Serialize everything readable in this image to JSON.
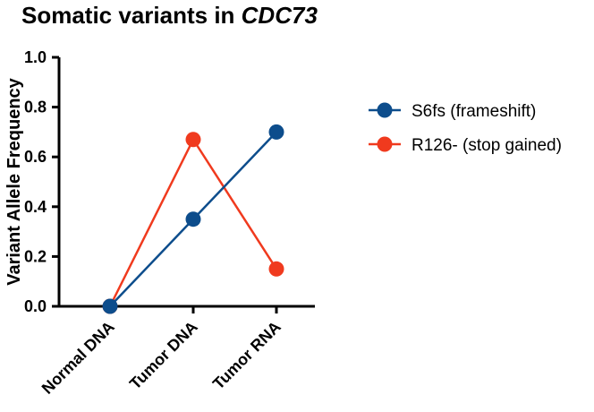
{
  "chart_data": {
    "type": "line",
    "title": "Somatic variants in ",
    "title_gene": "CDC73",
    "xlabel": "",
    "ylabel": "Variant Allele Frequency",
    "categories": [
      "Normal DNA",
      "Tumor DNA",
      "Tumor RNA"
    ],
    "ylim": [
      0,
      1.0
    ],
    "yticks": [
      "0.0",
      "0.2",
      "0.4",
      "0.6",
      "0.8",
      "1.0"
    ],
    "ytick_values": [
      0,
      0.2,
      0.4,
      0.6,
      0.8,
      1.0
    ],
    "grid": false,
    "legend_position": "right",
    "series": [
      {
        "name": "S6fs (frameshift)",
        "values": [
          0,
          0.35,
          0.7
        ],
        "color": "#0d4d8c"
      },
      {
        "name": "R126- (stop gained)",
        "values": [
          0,
          0.67,
          0.15
        ],
        "color": "#f03a1e"
      }
    ]
  }
}
